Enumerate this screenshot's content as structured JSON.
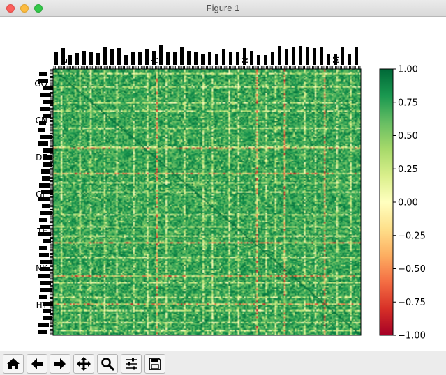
{
  "window": {
    "title": "Figure 1"
  },
  "toolbar": {
    "buttons": [
      {
        "name": "home-button",
        "icon": "home-icon"
      },
      {
        "name": "back-button",
        "icon": "arrow-left-icon"
      },
      {
        "name": "forward-button",
        "icon": "arrow-right-icon"
      },
      {
        "name": "pan-button",
        "icon": "move-icon"
      },
      {
        "name": "zoom-button",
        "icon": "magnifier-icon"
      },
      {
        "name": "configure-subplots-button",
        "icon": "sliders-icon"
      },
      {
        "name": "save-button",
        "icon": "floppy-disk-icon"
      }
    ]
  },
  "chart_data": {
    "type": "heatmap",
    "title": "",
    "xlabel": "",
    "ylabel": "",
    "description_note": "Large correlation matrix; row/column tick labels are densely overlapping and unreadable. Values mostly 0.5 to 1.0 (green), with scattered low/negative columns and rows (yellow to red).",
    "matrix_size": 200,
    "value_range": [
      -1.0,
      1.0
    ],
    "colormap": "RdYlGn",
    "colorbar": {
      "ticks": [
        "1.00",
        "0.75",
        "0.50",
        "0.25",
        "0.00",
        "−0.25",
        "−0.50",
        "−0.75",
        "−1.00"
      ],
      "tick_values": [
        1.0,
        0.75,
        0.5,
        0.25,
        0.0,
        -0.25,
        -0.5,
        -0.75,
        -1.0
      ]
    },
    "highlighted_negative_rows": [
      59,
      78,
      130,
      155,
      176
    ],
    "highlighted_negative_cols": [
      67,
      132,
      150,
      176
    ],
    "pale_rows": [
      3,
      13,
      25,
      31,
      44,
      58,
      85,
      92,
      109,
      118,
      125,
      141,
      160,
      171,
      181,
      190,
      196
    ],
    "pale_cols": [
      5,
      17,
      24,
      33,
      41,
      52,
      61,
      73,
      85,
      97,
      103,
      114,
      120,
      138,
      144,
      163,
      170,
      184,
      193
    ],
    "y_tick_labels_visible": [
      "GO",
      "CN",
      "DE",
      "GE",
      "TE",
      "NK",
      "HT"
    ],
    "x_tick_labels_visible": [
      "L",
      "A",
      "N",
      "M"
    ]
  }
}
